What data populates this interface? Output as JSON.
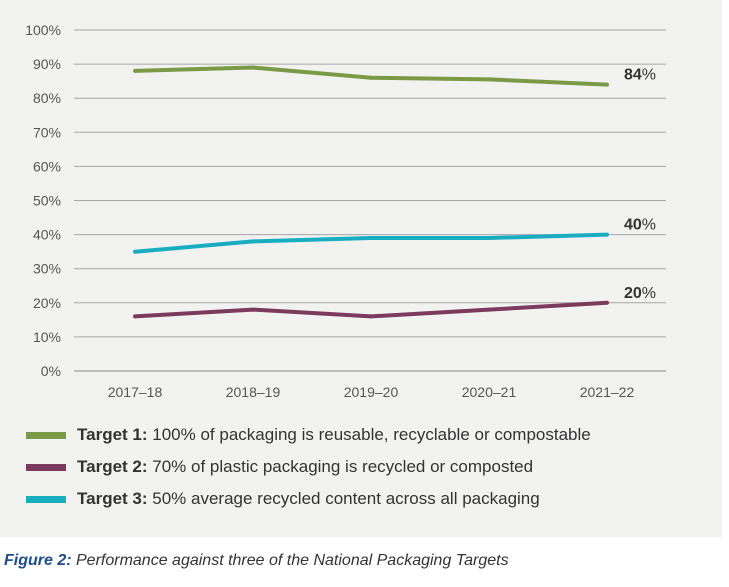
{
  "chart_data": {
    "type": "line",
    "title": "",
    "xlabel": "",
    "ylabel": "",
    "ylim": [
      0,
      100
    ],
    "y_ticks": [
      "0%",
      "10%",
      "20%",
      "30%",
      "40%",
      "50%",
      "60%",
      "70%",
      "80%",
      "90%",
      "100%"
    ],
    "categories": [
      "2017–18",
      "2018–19",
      "2019–20",
      "2020–21",
      "2021–22"
    ],
    "grid": true,
    "series": [
      {
        "name": "Target 1",
        "legend_bold": "Target 1:",
        "legend_text": " 100% of packaging is reusable, recyclable or compostable",
        "color": "#7a9a45",
        "values": [
          88,
          89,
          86,
          85.5,
          84
        ],
        "end_label_num": "84",
        "end_label_unit": "%"
      },
      {
        "name": "Target 2",
        "legend_bold": "Target 2:",
        "legend_text": " 70% of plastic packaging is recycled or composted",
        "color": "#7c3a5e",
        "values": [
          16,
          18,
          16,
          18,
          20
        ],
        "end_label_num": "20",
        "end_label_unit": "%"
      },
      {
        "name": "Target 3",
        "legend_bold": "Target 3:",
        "legend_text": " 50% average recycled content across all packaging",
        "color": "#19aebf",
        "values": [
          35,
          38,
          39,
          39,
          40
        ],
        "end_label_num": "40",
        "end_label_unit": "%"
      }
    ]
  },
  "caption": {
    "bold": "Figure 2:",
    "text": " Performance against three of the National Packaging Targets"
  }
}
